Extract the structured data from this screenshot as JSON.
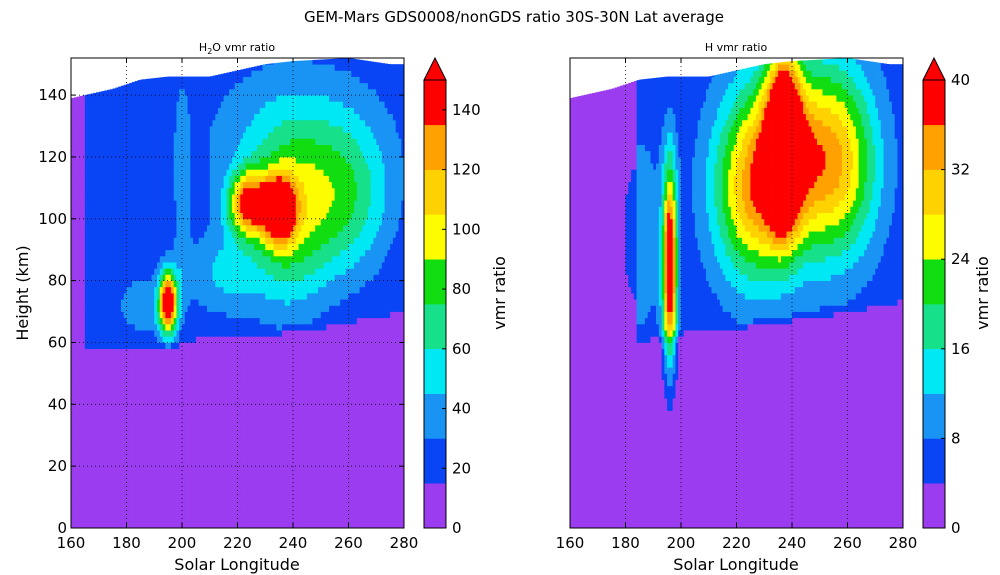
{
  "figure": {
    "suptitle": "GEM-Mars GDS0008/nonGDS ratio 30S-30N Lat average"
  },
  "palette": [
    "#9c3cf0",
    "#0a45f5",
    "#1994f5",
    "#00e8f4",
    "#16e08a",
    "#10de10",
    "#fdfd00",
    "#fed100",
    "#ffa100",
    "#ff0000"
  ],
  "chart_data": [
    {
      "type": "heatmap",
      "panel": "left",
      "title_main": "H",
      "title_sub": "2",
      "title_rest": "O vmr ratio",
      "xlabel": "Solar Longitude",
      "ylabel": "Height (km)",
      "xlim": [
        160,
        280
      ],
      "ylim": [
        0,
        152
      ],
      "xticks": [
        "160",
        "180",
        "200",
        "220",
        "240",
        "260",
        "280"
      ],
      "yticks": [
        "0",
        "20",
        "40",
        "60",
        "80",
        "100",
        "120",
        "140"
      ],
      "top_boundary_km": [
        [
          160,
          139
        ],
        [
          175,
          142
        ],
        [
          185,
          145
        ],
        [
          195,
          146
        ],
        [
          200,
          146
        ],
        [
          210,
          146
        ],
        [
          220,
          148
        ],
        [
          230,
          150
        ],
        [
          240,
          151
        ],
        [
          260,
          152
        ],
        [
          275,
          150
        ],
        [
          280,
          150
        ]
      ],
      "colorbar": {
        "label": "vmr ratio",
        "levels": [
          0,
          15,
          30,
          45,
          60,
          75,
          90,
          105,
          120,
          135,
          150
        ],
        "tick_labels": [
          "0",
          "20",
          "40",
          "60",
          "80",
          "100",
          "120",
          "140"
        ],
        "tick_values": [
          0,
          20,
          40,
          60,
          80,
          100,
          120,
          140
        ],
        "extend": "max"
      },
      "blobs": [
        {
          "ls": 195,
          "km": 73,
          "sls": 2.2,
          "skm": 7,
          "amp": 148
        },
        {
          "ls": 224,
          "km": 105,
          "sls": 5,
          "skm": 7,
          "amp": 110
        },
        {
          "ls": 235,
          "km": 103,
          "sls": 4,
          "skm": 7,
          "amp": 125
        },
        {
          "ls": 238,
          "km": 98,
          "sls": 10,
          "skm": 20,
          "amp": 55
        },
        {
          "ls": 258,
          "km": 105,
          "sls": 12,
          "skm": 18,
          "amp": 48
        },
        {
          "ls": 215,
          "km": 82,
          "sls": 10,
          "skm": 10,
          "amp": 30
        },
        {
          "ls": 186,
          "km": 72,
          "sls": 8,
          "skm": 8,
          "amp": 24
        },
        {
          "ls": 240,
          "km": 125,
          "sls": 25,
          "skm": 20,
          "amp": 30
        },
        {
          "ls": 200,
          "km": 110,
          "sls": 2,
          "skm": 25,
          "amp": 22
        }
      ],
      "base": {
        "floor_start": 165,
        "floor_end": 280,
        "floor_bottom_start": 55,
        "floor_bottom_end": 68,
        "floor_level": 15
      }
    },
    {
      "type": "heatmap",
      "panel": "right",
      "title": "H vmr ratio",
      "xlabel": "Solar Longitude",
      "xlim": [
        160,
        280
      ],
      "ylim": [
        0,
        152
      ],
      "xticks": [
        "160",
        "180",
        "200",
        "220",
        "240",
        "260",
        "280"
      ],
      "top_boundary_km": [
        [
          160,
          139
        ],
        [
          175,
          142
        ],
        [
          185,
          145
        ],
        [
          195,
          146
        ],
        [
          200,
          146
        ],
        [
          210,
          146
        ],
        [
          220,
          148
        ],
        [
          230,
          150
        ],
        [
          240,
          151
        ],
        [
          260,
          152
        ],
        [
          275,
          150
        ],
        [
          280,
          150
        ]
      ],
      "colorbar": {
        "label": "vmr ratio",
        "levels": [
          0,
          4,
          8,
          12,
          16,
          20,
          24,
          28,
          32,
          36,
          40
        ],
        "tick_labels": [
          "0",
          "8",
          "16",
          "24",
          "32",
          "40"
        ],
        "tick_values": [
          0,
          8,
          16,
          24,
          32,
          40
        ],
        "extend": "max"
      },
      "blobs": [
        {
          "ls": 196,
          "km": 85,
          "sls": 1.8,
          "skm": 22,
          "amp": 40
        },
        {
          "ls": 237,
          "km": 125,
          "sls": 4,
          "skm": 18,
          "amp": 40
        },
        {
          "ls": 238,
          "km": 120,
          "sls": 14,
          "skm": 22,
          "amp": 26
        },
        {
          "ls": 258,
          "km": 118,
          "sls": 10,
          "skm": 22,
          "amp": 18
        },
        {
          "ls": 225,
          "km": 105,
          "sls": 10,
          "skm": 20,
          "amp": 16
        },
        {
          "ls": 185,
          "km": 95,
          "sls": 6,
          "skm": 25,
          "amp": 6
        }
      ],
      "base": {
        "floor_start": 184,
        "floor_end": 280,
        "floor_bottom_start": 60,
        "floor_bottom_end": 72,
        "floor_level": 5
      }
    }
  ]
}
